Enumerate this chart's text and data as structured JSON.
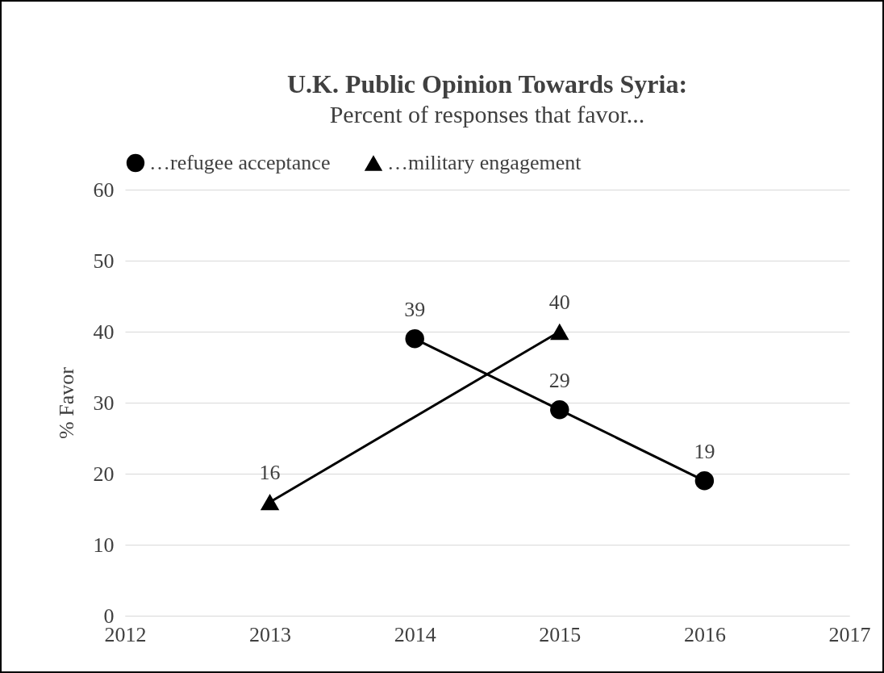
{
  "chart_data": {
    "type": "line",
    "title": "U.K. Public Opinion Towards Syria:",
    "subtitle": "Percent of responses that favor...",
    "ylabel": "% Favor",
    "series": [
      {
        "name": "…refugee acceptance",
        "color": "#000000",
        "marker": "circle",
        "x": [
          2014,
          2015,
          2016
        ],
        "values": [
          39,
          29,
          19
        ]
      },
      {
        "name": "…military engagement",
        "color": "#000000",
        "marker": "triangle",
        "x": [
          2013,
          2015
        ],
        "values": [
          16,
          40
        ]
      }
    ],
    "xlim": [
      2012,
      2017
    ],
    "xticks": [
      2012,
      2013,
      2014,
      2015,
      2016,
      2017
    ],
    "ylim": [
      0,
      60
    ],
    "yticks": [
      0,
      10,
      20,
      30,
      40,
      50,
      60
    ],
    "grid": "y",
    "legend": "top",
    "data_labels": true,
    "line_style": "solid"
  }
}
